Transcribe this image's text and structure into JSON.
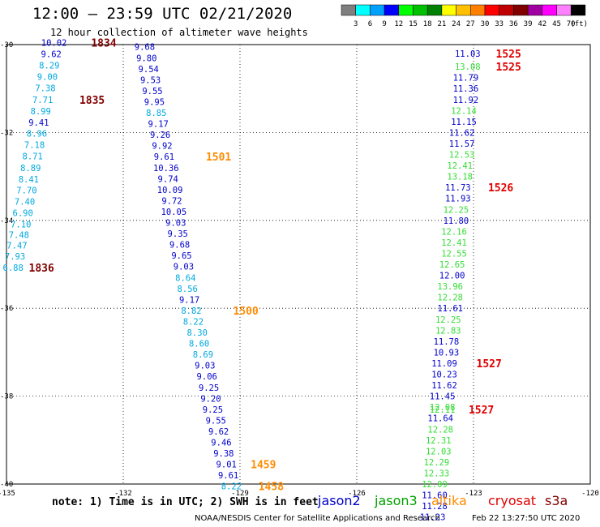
{
  "header": {
    "title": "12:00 – 23:59 UTC 02/21/2020",
    "subtitle": "12 hour collection of altimeter wave heights"
  },
  "legend_scale": {
    "unit": "(ft)",
    "labels": [
      "3",
      "6",
      "9",
      "12",
      "15",
      "18",
      "21",
      "24",
      "27",
      "30",
      "33",
      "36",
      "39",
      "42",
      "45",
      "70"
    ],
    "colors": [
      "#7f7f7f",
      "#00ffff",
      "#00a0ff",
      "#0000ff",
      "#00ff00",
      "#00c000",
      "#008000",
      "#ffff00",
      "#ffc000",
      "#ff8000",
      "#ff0000",
      "#c00000",
      "#800000",
      "#a000a0",
      "#ff00ff",
      "#ff80ff",
      "#000000"
    ]
  },
  "axes": {
    "lat_labels": [
      "-30",
      "-32",
      "-34",
      "-36",
      "-38",
      "-40"
    ],
    "lon_labels": [
      "-135",
      "-132",
      "-129",
      "-126",
      "-123",
      "-120"
    ]
  },
  "satellites": [
    {
      "name": "jason2",
      "color": "#0000cc"
    },
    {
      "name": "jason3",
      "color": "#00a000"
    },
    {
      "name": "altika",
      "color": "#ff8c00"
    },
    {
      "name": "cryosat",
      "color": "#e00000"
    },
    {
      "name": "s3a",
      "color": "#800000"
    }
  ],
  "footer": {
    "note": "note:  1) Time is in UTC;  2) SWH is in feet",
    "credit": "NOAA/NESDIS Center for Satellite Applications and Research",
    "stamp": "Feb 22 13:27:50 UTC 2020"
  },
  "map_data": {
    "track_s3a": [
      {
        "lon": -133.78,
        "lat": -29.95,
        "swh": "10.02",
        "sat": "jason2"
      },
      {
        "lon": -133.85,
        "lat": -30.21,
        "swh": "9.62",
        "sat": "jason2"
      },
      {
        "lon": -133.9,
        "lat": -30.47,
        "swh": "8.29",
        "sat": "cyan"
      },
      {
        "lon": -133.95,
        "lat": -30.73,
        "swh": "9.00",
        "sat": "cyan"
      },
      {
        "lon": -134.0,
        "lat": -30.99,
        "swh": "7.38",
        "sat": "cyan"
      },
      {
        "lon": -134.07,
        "lat": -31.25,
        "swh": "7.71",
        "sat": "cyan"
      },
      {
        "lon": -134.12,
        "lat": -31.51,
        "swh": "8.99",
        "sat": "cyan"
      },
      {
        "lon": -134.17,
        "lat": -31.77,
        "swh": "9.41",
        "sat": "jason2"
      },
      {
        "lon": -134.22,
        "lat": -32.02,
        "swh": "8.96",
        "sat": "cyan"
      },
      {
        "lon": -134.28,
        "lat": -32.28,
        "swh": "7.18",
        "sat": "cyan"
      },
      {
        "lon": -134.33,
        "lat": -32.54,
        "swh": "8.71",
        "sat": "cyan"
      },
      {
        "lon": -134.38,
        "lat": -32.8,
        "swh": "8.89",
        "sat": "cyan"
      },
      {
        "lon": -134.43,
        "lat": -33.06,
        "swh": "8.41",
        "sat": "cyan"
      },
      {
        "lon": -134.48,
        "lat": -33.31,
        "swh": "7.70",
        "sat": "cyan"
      },
      {
        "lon": -134.53,
        "lat": -33.57,
        "swh": "7.40",
        "sat": "cyan"
      },
      {
        "lon": -134.58,
        "lat": -33.83,
        "swh": "6.90",
        "sat": "cyan"
      },
      {
        "lon": -134.63,
        "lat": -34.09,
        "swh": "7.10",
        "sat": "cyan"
      },
      {
        "lon": -134.68,
        "lat": -34.33,
        "swh": "7.48",
        "sat": "cyan"
      },
      {
        "lon": -134.73,
        "lat": -34.57,
        "swh": "7.47",
        "sat": "cyan"
      },
      {
        "lon": -134.78,
        "lat": -34.82,
        "swh": "7.93",
        "sat": "cyan"
      },
      {
        "lon": -134.83,
        "lat": -35.07,
        "swh": "6.88",
        "sat": "cyan"
      }
    ],
    "track_altika": [
      {
        "lon": -131.45,
        "lat": -30.05,
        "swh": "9.68",
        "sat": "jason2"
      },
      {
        "lon": -131.4,
        "lat": -30.3,
        "swh": "9.80",
        "sat": "jason2"
      },
      {
        "lon": -131.35,
        "lat": -30.55,
        "swh": "9.54",
        "sat": "jason2"
      },
      {
        "lon": -131.3,
        "lat": -30.8,
        "swh": "9.53",
        "sat": "jason2"
      },
      {
        "lon": -131.25,
        "lat": -31.05,
        "swh": "9.55",
        "sat": "jason2"
      },
      {
        "lon": -131.2,
        "lat": -31.3,
        "swh": "9.95",
        "sat": "jason2"
      },
      {
        "lon": -131.15,
        "lat": -31.55,
        "swh": "8.85",
        "sat": "cyan"
      },
      {
        "lon": -131.1,
        "lat": -31.8,
        "swh": "9.17",
        "sat": "jason2"
      },
      {
        "lon": -131.05,
        "lat": -32.05,
        "swh": "9.26",
        "sat": "jason2"
      },
      {
        "lon": -131.0,
        "lat": -32.3,
        "swh": "9.92",
        "sat": "jason2"
      },
      {
        "lon": -130.95,
        "lat": -32.55,
        "swh": "9.61",
        "sat": "jason2"
      },
      {
        "lon": -130.9,
        "lat": -32.8,
        "swh": "10.36",
        "sat": "jason2"
      },
      {
        "lon": -130.85,
        "lat": -33.05,
        "swh": "9.74",
        "sat": "jason2"
      },
      {
        "lon": -130.8,
        "lat": -33.3,
        "swh": "10.09",
        "sat": "jason2"
      },
      {
        "lon": -130.75,
        "lat": -33.55,
        "swh": "9.72",
        "sat": "jason2"
      },
      {
        "lon": -130.7,
        "lat": -33.8,
        "swh": "10.05",
        "sat": "jason2"
      },
      {
        "lon": -130.65,
        "lat": -34.05,
        "swh": "9.03",
        "sat": "jason2"
      },
      {
        "lon": -130.6,
        "lat": -34.3,
        "swh": "9.35",
        "sat": "jason2"
      },
      {
        "lon": -130.55,
        "lat": -34.55,
        "swh": "9.68",
        "sat": "jason2"
      },
      {
        "lon": -130.5,
        "lat": -34.8,
        "swh": "9.65",
        "sat": "jason2"
      },
      {
        "lon": -130.45,
        "lat": -35.05,
        "swh": "9.03",
        "sat": "jason2"
      },
      {
        "lon": -130.4,
        "lat": -35.3,
        "swh": "8.64",
        "sat": "cyan"
      },
      {
        "lon": -130.35,
        "lat": -35.55,
        "swh": "8.56",
        "sat": "cyan"
      },
      {
        "lon": -130.3,
        "lat": -35.8,
        "swh": "9.17",
        "sat": "jason2"
      },
      {
        "lon": -130.25,
        "lat": -36.05,
        "swh": "8.82",
        "sat": "cyan"
      },
      {
        "lon": -130.2,
        "lat": -36.3,
        "swh": "8.22",
        "sat": "cyan"
      },
      {
        "lon": -130.1,
        "lat": -36.55,
        "swh": "8.30",
        "sat": "cyan"
      },
      {
        "lon": -130.05,
        "lat": -36.8,
        "swh": "8.60",
        "sat": "cyan"
      },
      {
        "lon": -129.95,
        "lat": -37.05,
        "swh": "8.69",
        "sat": "cyan"
      },
      {
        "lon": -129.9,
        "lat": -37.3,
        "swh": "9.03",
        "sat": "jason2"
      },
      {
        "lon": -129.85,
        "lat": -37.55,
        "swh": "9.06",
        "sat": "jason2"
      },
      {
        "lon": -129.8,
        "lat": -37.8,
        "swh": "9.25",
        "sat": "jason2"
      },
      {
        "lon": -129.75,
        "lat": -38.05,
        "swh": "9.20",
        "sat": "jason2"
      },
      {
        "lon": -129.7,
        "lat": -38.3,
        "swh": "9.25",
        "sat": "jason2"
      },
      {
        "lon": -129.62,
        "lat": -38.55,
        "swh": "9.55",
        "sat": "jason2"
      },
      {
        "lon": -129.55,
        "lat": -38.8,
        "swh": "9.62",
        "sat": "jason2"
      },
      {
        "lon": -129.48,
        "lat": -39.05,
        "swh": "9.46",
        "sat": "jason2"
      },
      {
        "lon": -129.42,
        "lat": -39.3,
        "swh": "9.38",
        "sat": "jason2"
      },
      {
        "lon": -129.35,
        "lat": -39.55,
        "swh": "9.01",
        "sat": "jason2"
      },
      {
        "lon": -129.3,
        "lat": -39.8,
        "swh": "9.61",
        "sat": "jason2"
      },
      {
        "lon": -129.22,
        "lat": -40.05,
        "swh": "8.22",
        "sat": "cyan"
      }
    ],
    "track_cryosat": [
      {
        "lon": -123.15,
        "lat": -30.2,
        "swh": "11.03",
        "sat": "jason2"
      },
      {
        "lon": -123.15,
        "lat": -30.5,
        "swh": "13.08",
        "sat": "jason3"
      },
      {
        "lon": -123.2,
        "lat": -30.75,
        "swh": "11.79",
        "sat": "jason2"
      },
      {
        "lon": -123.2,
        "lat": -31.0,
        "swh": "11.36",
        "sat": "jason2"
      },
      {
        "lon": -123.2,
        "lat": -31.25,
        "swh": "11.92",
        "sat": "jason2"
      },
      {
        "lon": -123.25,
        "lat": -31.5,
        "swh": "12.14",
        "sat": "jason3"
      },
      {
        "lon": -123.25,
        "lat": -31.75,
        "swh": "11.15",
        "sat": "jason2"
      },
      {
        "lon": -123.3,
        "lat": -32.0,
        "swh": "11.62",
        "sat": "jason2"
      },
      {
        "lon": -123.3,
        "lat": -32.25,
        "swh": "11.57",
        "sat": "jason2"
      },
      {
        "lon": -123.3,
        "lat": -32.5,
        "swh": "12.53",
        "sat": "jason3"
      },
      {
        "lon": -123.35,
        "lat": -32.75,
        "swh": "12.41",
        "sat": "jason3"
      },
      {
        "lon": -123.35,
        "lat": -33.0,
        "swh": "13.18",
        "sat": "jason3"
      },
      {
        "lon": -123.4,
        "lat": -33.25,
        "swh": "11.73",
        "sat": "jason2"
      },
      {
        "lon": -123.4,
        "lat": -33.5,
        "swh": "11.93",
        "sat": "jason2"
      },
      {
        "lon": -123.45,
        "lat": -33.75,
        "swh": "12.25",
        "sat": "jason3"
      },
      {
        "lon": -123.45,
        "lat": -34.0,
        "swh": "11.80",
        "sat": "jason2"
      },
      {
        "lon": -123.5,
        "lat": -34.25,
        "swh": "12.16",
        "sat": "jason3"
      },
      {
        "lon": -123.5,
        "lat": -34.5,
        "swh": "12.41",
        "sat": "jason3"
      },
      {
        "lon": -123.5,
        "lat": -34.75,
        "swh": "12.55",
        "sat": "jason3"
      },
      {
        "lon": -123.55,
        "lat": -35.0,
        "swh": "12.65",
        "sat": "jason3"
      },
      {
        "lon": -123.55,
        "lat": -35.25,
        "swh": "12.00",
        "sat": "jason2"
      },
      {
        "lon": -123.6,
        "lat": -35.5,
        "swh": "13.96",
        "sat": "jason3"
      },
      {
        "lon": -123.6,
        "lat": -35.75,
        "swh": "12.28",
        "sat": "jason3"
      },
      {
        "lon": -123.6,
        "lat": -36.0,
        "swh": "11.61",
        "sat": "jason2"
      },
      {
        "lon": -123.65,
        "lat": -36.25,
        "swh": "12.25",
        "sat": "jason3"
      },
      {
        "lon": -123.65,
        "lat": -36.5,
        "swh": "12.83",
        "sat": "jason3"
      },
      {
        "lon": -123.7,
        "lat": -36.75,
        "swh": "11.78",
        "sat": "jason2"
      },
      {
        "lon": -123.7,
        "lat": -37.0,
        "swh": "10.93",
        "sat": "jason2"
      },
      {
        "lon": -123.75,
        "lat": -37.25,
        "swh": "11.09",
        "sat": "jason2"
      },
      {
        "lon": -123.75,
        "lat": -37.5,
        "swh": "10.23",
        "sat": "jason2"
      },
      {
        "lon": -123.75,
        "lat": -37.75,
        "swh": "11.62",
        "sat": "jason2"
      },
      {
        "lon": -123.8,
        "lat": -38.0,
        "swh": "11.45",
        "sat": "jason2"
      },
      {
        "lon": -123.8,
        "lat": -38.25,
        "swh": "12.08",
        "sat": "jason3"
      },
      {
        "lon": -123.8,
        "lat": -38.3,
        "swh": "12.11",
        "sat": "jason3"
      },
      {
        "lon": -123.85,
        "lat": -38.5,
        "swh": "11.64",
        "sat": "jason2"
      },
      {
        "lon": -123.85,
        "lat": -38.75,
        "swh": "12.28",
        "sat": "jason3"
      },
      {
        "lon": -123.9,
        "lat": -39.0,
        "swh": "12.31",
        "sat": "jason3"
      },
      {
        "lon": -123.9,
        "lat": -39.25,
        "swh": "12.03",
        "sat": "jason3"
      },
      {
        "lon": -123.95,
        "lat": -39.5,
        "swh": "12.29",
        "sat": "jason3"
      },
      {
        "lon": -123.95,
        "lat": -39.75,
        "swh": "12.33",
        "sat": "jason3"
      },
      {
        "lon": -124.0,
        "lat": -40.0,
        "swh": "12.09",
        "sat": "jason3"
      },
      {
        "lon": -124.0,
        "lat": -40.25,
        "swh": "11.60",
        "sat": "jason2"
      },
      {
        "lon": -124.0,
        "lat": -40.5,
        "swh": "11.28",
        "sat": "jason2"
      },
      {
        "lon": -124.05,
        "lat": -40.75,
        "swh": "11.23",
        "sat": "jason2"
      }
    ],
    "time_labels": [
      {
        "text": "1834",
        "sat": "s3a",
        "lon": -132.5,
        "lat": -29.95
      },
      {
        "text": "1835",
        "sat": "s3a",
        "lon": -132.8,
        "lat": -31.25
      },
      {
        "text": "1836",
        "sat": "s3a",
        "lon": -134.1,
        "lat": -35.07
      },
      {
        "text": "1501",
        "sat": "altika",
        "lon": -129.55,
        "lat": -32.55
      },
      {
        "text": "1500",
        "sat": "altika",
        "lon": -128.85,
        "lat": -36.05
      },
      {
        "text": "1459",
        "sat": "altika",
        "lon": -128.4,
        "lat": -39.55
      },
      {
        "text": "1458",
        "sat": "altika",
        "lon": -128.2,
        "lat": -40.05
      },
      {
        "text": "1525",
        "sat": "cryosat",
        "lon": -122.1,
        "lat": -30.2
      },
      {
        "text": "1525",
        "sat": "cryosat",
        "lon": -122.1,
        "lat": -30.5
      },
      {
        "text": "1526",
        "sat": "cryosat",
        "lon": -122.3,
        "lat": -33.25
      },
      {
        "text": "1527",
        "sat": "cryosat",
        "lon": -122.6,
        "lat": -37.25
      },
      {
        "text": "1527",
        "sat": "cryosat",
        "lon": -122.8,
        "lat": -38.3
      }
    ]
  }
}
